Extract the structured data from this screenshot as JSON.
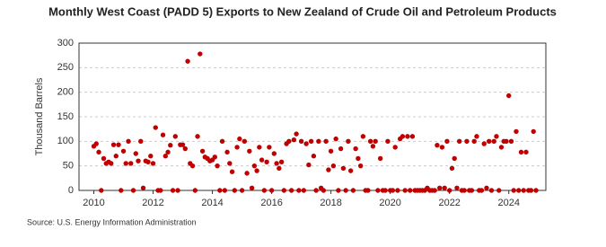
{
  "chart_data": {
    "type": "scatter",
    "title": "Monthly West Coast (PADD 5) Exports to New Zealand of Crude Oil and Petroleum Products",
    "y_label": "Thousand Barrels",
    "source": "Source: U.S. Energy Information Administration",
    "xlim": [
      2009.5,
      2025.25
    ],
    "xticks": [
      2010,
      2012,
      2014,
      2016,
      2018,
      2020,
      2022,
      2024
    ],
    "ylim": [
      0,
      300
    ],
    "yticks": [
      0,
      50,
      100,
      150,
      200,
      250,
      300
    ],
    "grid": true,
    "series": [
      {
        "color": "#c00000",
        "x": [
          2010,
          2010.083,
          2010.167,
          2010.25,
          2010.333,
          2010.417,
          2010.5,
          2010.583,
          2010.667,
          2010.75,
          2010.833,
          2010.917,
          2011,
          2011.083,
          2011.167,
          2011.25,
          2011.333,
          2011.417,
          2011.5,
          2011.583,
          2011.667,
          2011.75,
          2011.833,
          2011.917,
          2012,
          2012.083,
          2012.167,
          2012.25,
          2012.333,
          2012.417,
          2012.5,
          2012.583,
          2012.667,
          2012.75,
          2012.833,
          2012.917,
          2013,
          2013.083,
          2013.167,
          2013.25,
          2013.333,
          2013.417,
          2013.5,
          2013.583,
          2013.667,
          2013.75,
          2013.833,
          2013.917,
          2014,
          2014.083,
          2014.167,
          2014.25,
          2014.333,
          2014.417,
          2014.5,
          2014.583,
          2014.667,
          2014.75,
          2014.833,
          2014.917,
          2015,
          2015.083,
          2015.167,
          2015.25,
          2015.333,
          2015.417,
          2015.5,
          2015.583,
          2015.667,
          2015.75,
          2015.833,
          2015.917,
          2016,
          2016.083,
          2016.167,
          2016.25,
          2016.333,
          2016.417,
          2016.5,
          2016.583,
          2016.667,
          2016.75,
          2016.833,
          2016.917,
          2017,
          2017.083,
          2017.167,
          2017.25,
          2017.333,
          2017.417,
          2017.5,
          2017.583,
          2017.667,
          2017.75,
          2017.833,
          2017.917,
          2018,
          2018.083,
          2018.167,
          2018.25,
          2018.333,
          2018.417,
          2018.5,
          2018.583,
          2018.667,
          2018.75,
          2018.833,
          2018.917,
          2019,
          2019.083,
          2019.167,
          2019.25,
          2019.333,
          2019.417,
          2019.5,
          2019.583,
          2019.667,
          2019.75,
          2019.833,
          2019.917,
          2020,
          2020.083,
          2020.167,
          2020.25,
          2020.333,
          2020.417,
          2020.5,
          2020.583,
          2020.667,
          2020.75,
          2020.833,
          2020.917,
          2021,
          2021.083,
          2021.167,
          2021.25,
          2021.333,
          2021.417,
          2021.5,
          2021.583,
          2021.667,
          2021.75,
          2021.833,
          2021.917,
          2022,
          2022.083,
          2022.167,
          2022.25,
          2022.333,
          2022.417,
          2022.5,
          2022.583,
          2022.667,
          2022.75,
          2022.833,
          2022.917,
          2023,
          2023.083,
          2023.167,
          2023.25,
          2023.333,
          2023.417,
          2023.5,
          2023.583,
          2023.667,
          2023.75,
          2023.833,
          2023.917,
          2024,
          2024.083,
          2024.167,
          2024.25,
          2024.333,
          2024.417,
          2024.5,
          2024.583,
          2024.667,
          2024.75,
          2024.833,
          2024.917
        ],
        "values": [
          90,
          95,
          78,
          0,
          65,
          55,
          58,
          55,
          93,
          70,
          93,
          0,
          80,
          55,
          100,
          55,
          0,
          75,
          60,
          100,
          5,
          60,
          58,
          70,
          55,
          128,
          0,
          0,
          113,
          70,
          78,
          92,
          0,
          110,
          0,
          93,
          93,
          85,
          263,
          55,
          50,
          0,
          110,
          278,
          80,
          68,
          65,
          60,
          62,
          68,
          50,
          0,
          100,
          0,
          78,
          55,
          38,
          0,
          88,
          105,
          0,
          100,
          35,
          80,
          5,
          50,
          40,
          88,
          62,
          0,
          58,
          88,
          0,
          75,
          55,
          45,
          58,
          0,
          95,
          100,
          0,
          103,
          115,
          0,
          100,
          0,
          95,
          52,
          100,
          70,
          0,
          100,
          5,
          0,
          100,
          42,
          80,
          50,
          105,
          0,
          85,
          45,
          0,
          100,
          40,
          0,
          85,
          65,
          50,
          110,
          0,
          0,
          100,
          90,
          100,
          0,
          65,
          0,
          0,
          100,
          0,
          0,
          88,
          0,
          105,
          110,
          0,
          110,
          0,
          110,
          0,
          0,
          0,
          0,
          0,
          5,
          0,
          0,
          0,
          92,
          5,
          88,
          5,
          100,
          0,
          45,
          65,
          5,
          100,
          0,
          0,
          100,
          0,
          0,
          100,
          110,
          0,
          0,
          95,
          5,
          100,
          0,
          100,
          110,
          0,
          88,
          100,
          100,
          193,
          100,
          0,
          120,
          0,
          78,
          0,
          78,
          0,
          0,
          120,
          0
        ]
      }
    ]
  }
}
